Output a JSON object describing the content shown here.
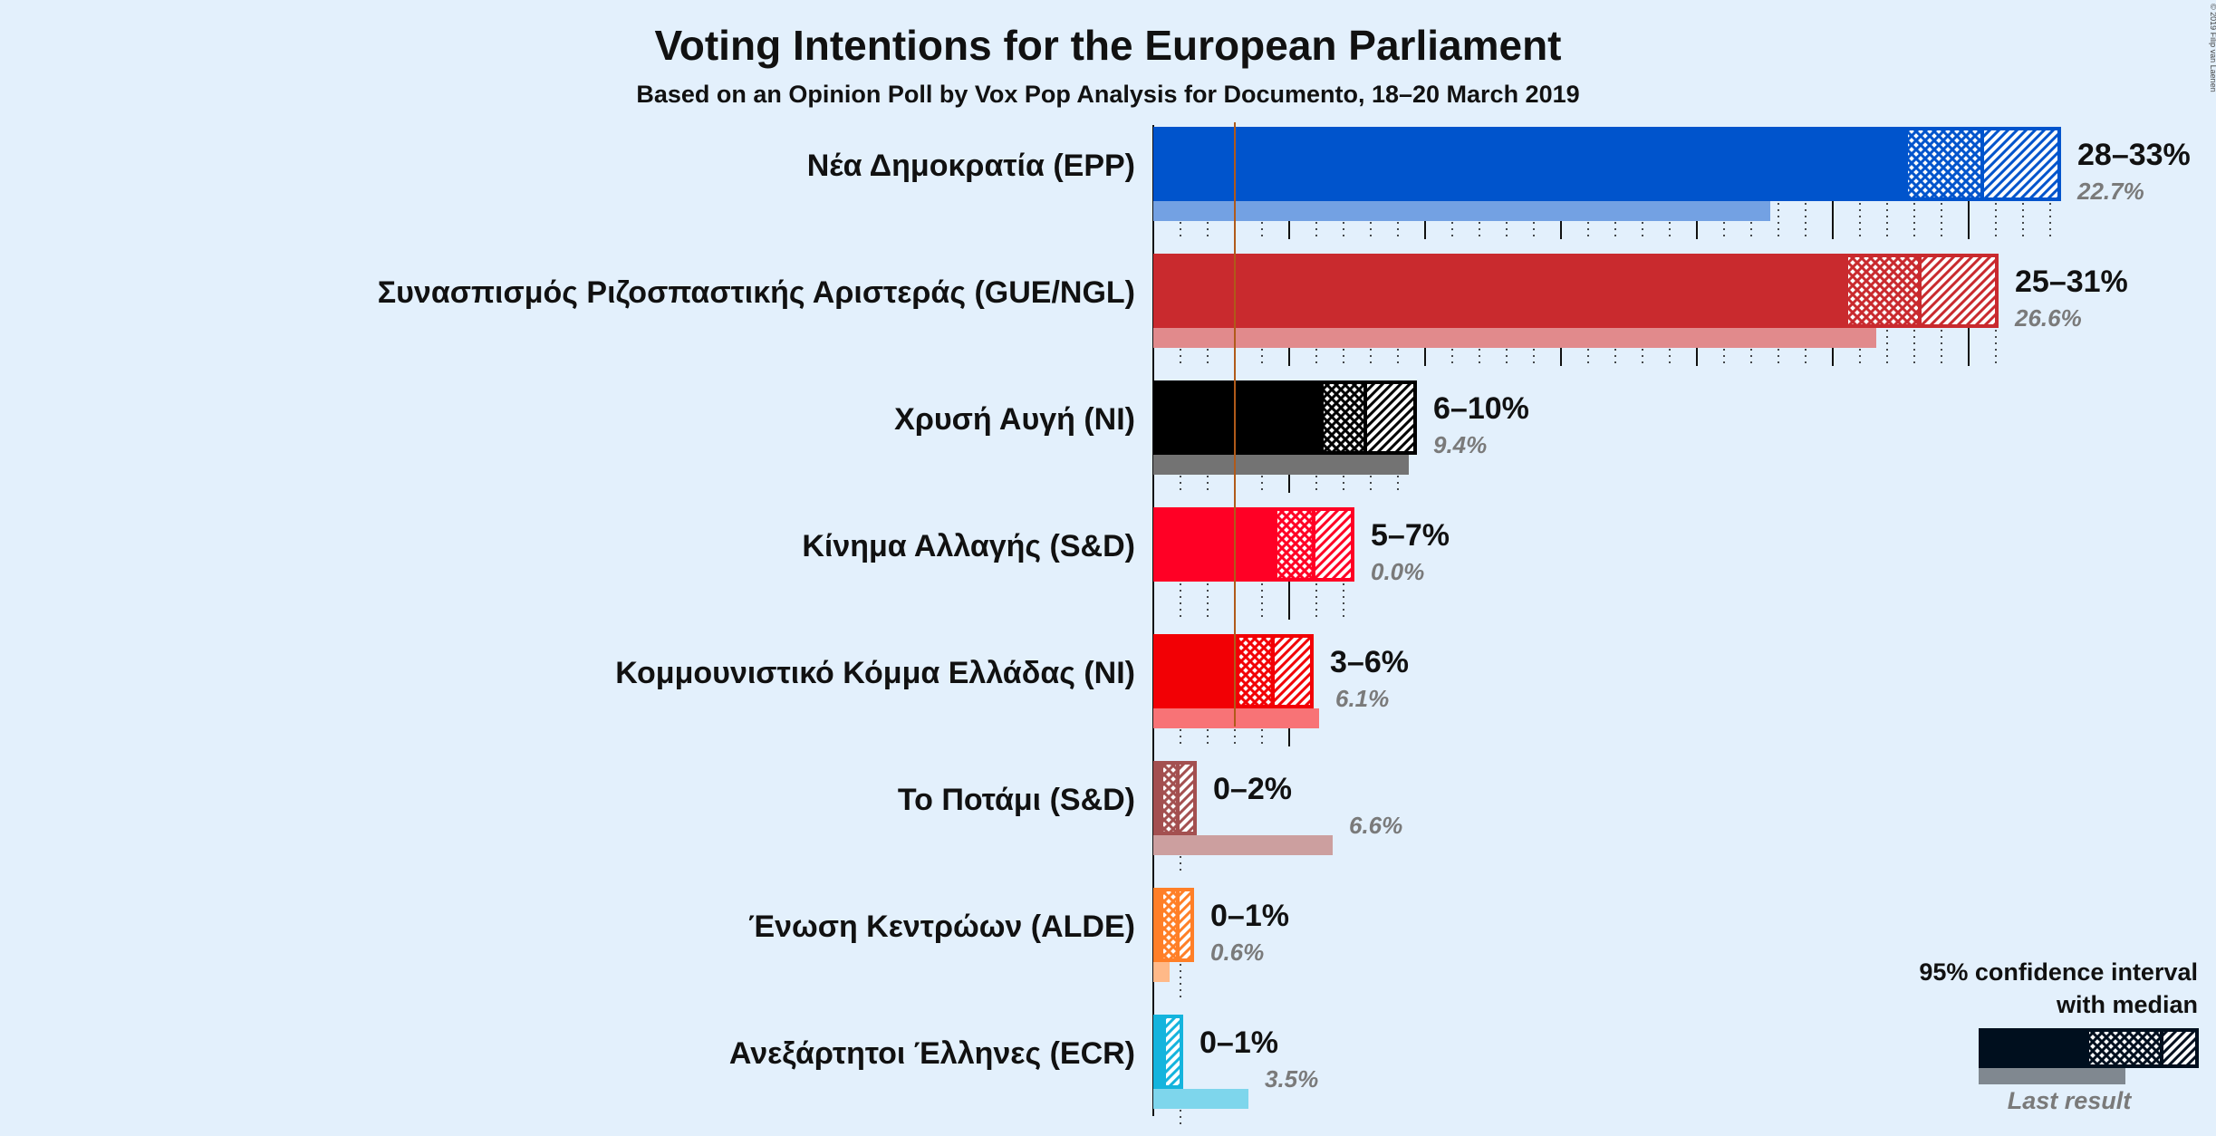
{
  "chart_data": {
    "type": "bar",
    "title": "Voting Intentions for the European Parliament",
    "subtitle": "Based on an Opinion Poll by Vox Pop Analysis for Documento, 18–20 March 2019",
    "copyright": "© 2019 Filip van Laenen",
    "unit": "%",
    "threshold": 3,
    "categories": [
      "Νέα Δημοκρατία (EPP)",
      "Συνασπισμός Ριζοσπαστικής Αριστεράς (GUE/NGL)",
      "Χρυσή Αυγή (NI)",
      "Κίνημα Αλλαγής (S&D)",
      "Κομμουνιστικό Κόμμα Ελλάδας (NI)",
      "Το Ποτάμι (S&D)",
      "Ένωση Κεντρώων (ALDE)",
      "Ανεξάρτητοι Έλληνες (ECR)"
    ],
    "series": [
      {
        "name": "95% confidence interval with median",
        "low": [
          27.7,
          25.5,
          6.2,
          4.5,
          3.1,
          0.3,
          0.3,
          0.3
        ],
        "median": [
          30.5,
          28.2,
          7.8,
          5.9,
          4.4,
          0.9,
          0.9,
          0.4
        ],
        "high": [
          33.4,
          31.1,
          9.7,
          7.4,
          5.9,
          1.6,
          1.5,
          1.1
        ],
        "range_labels": [
          "28–33%",
          "25–31%",
          "6–10%",
          "5–7%",
          "3–6%",
          "0–2%",
          "0–1%",
          "0–1%"
        ]
      },
      {
        "name": "Last result",
        "values": [
          22.7,
          26.6,
          9.4,
          0.0,
          6.1,
          6.6,
          0.6,
          3.5
        ],
        "value_labels": [
          "22.7%",
          "26.6%",
          "9.4%",
          "0.0%",
          "6.1%",
          "6.6%",
          "0.6%",
          "3.5%"
        ]
      }
    ],
    "colors": [
      "#0054cc",
      "#c92a2e",
      "#000000",
      "#ff0025",
      "#f20005",
      "#a35050",
      "#ff7f27",
      "#14b4dd"
    ],
    "legend": {
      "ci_label_line1": "95% confidence interval",
      "ci_label_line2": "with median",
      "last_label": "Last result",
      "placement": "bottom-right",
      "color": "#000f1e"
    },
    "xlim": [
      0,
      34
    ]
  }
}
